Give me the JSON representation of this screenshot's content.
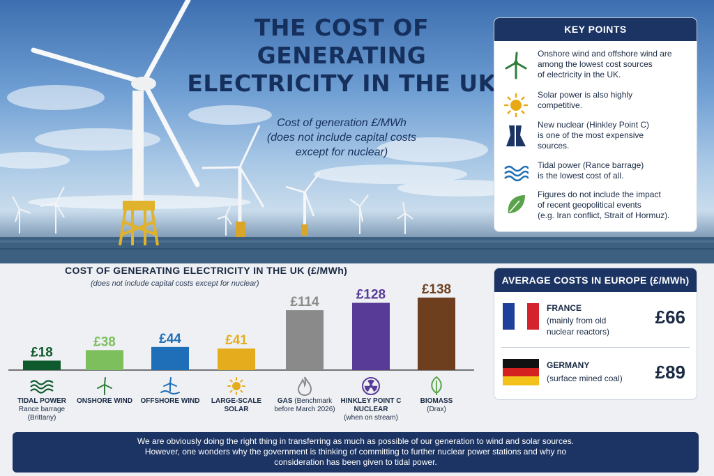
{
  "header": {
    "title_line1": "THE COST OF GENERATING",
    "title_line2": "ELECTRICITY IN THE UK",
    "subtitle_line1": "Cost of generation £/MWh",
    "subtitle_line2": "(does not include capital costs",
    "subtitle_line3": "except for nuclear)"
  },
  "key_points": {
    "heading": "KEY POINTS",
    "items": [
      {
        "icon": "wind-turbine-icon",
        "color": "#2e7d3a",
        "line1": "Onshore wind and offshore wind are",
        "line2": "among the lowest cost sources",
        "line3": "of electricity in the UK."
      },
      {
        "icon": "sun-icon",
        "color": "#e2a412",
        "line1": "Solar power is also highly",
        "line2": "competitive.",
        "line3": ""
      },
      {
        "icon": "cooling-tower-icon",
        "color": "#1c3463",
        "line1": "New nuclear (Hinkley Point C)",
        "line2": "is one of the most expensive",
        "line3": "sources."
      },
      {
        "icon": "waves-icon",
        "color": "#1f6fb5",
        "line1": "Tidal power  (Rance barrage)",
        "line2": "is the lowest cost of all.",
        "line3": ""
      },
      {
        "icon": "leaf-icon",
        "color": "#5aa34a",
        "line1": "Figures do not include the impact",
        "line2": "of recent geopolitical events",
        "line3": "(e.g. Iran conflict, Strait of Hormuz)."
      }
    ]
  },
  "chart_data": {
    "type": "bar",
    "title": "COST OF GENERATING ELECTRICITY IN THE UK (£/MWh)",
    "subtitle": "(does not include capital costs except for nuclear)",
    "categories": [
      "TIDAL POWER",
      "ONSHORE WIND",
      "OFFSHORE WIND",
      "LARGE-SCALE SOLAR",
      "GAS",
      "HINKLEY POINT C NUCLEAR",
      "BIOMASS"
    ],
    "values": [
      18,
      38,
      44,
      41,
      114,
      128,
      138
    ],
    "value_labels": [
      "£18",
      "£38",
      "£44",
      "£41",
      "£114",
      "£128",
      "£138"
    ],
    "colors": [
      "#0f5a2c",
      "#7cbf5c",
      "#1f6fb8",
      "#e5ad1d",
      "#8a8a8a",
      "#583b96",
      "#6e3f1f"
    ],
    "ylim": [
      0,
      150
    ],
    "xlabel": "",
    "ylabel": "",
    "grid": false,
    "label_lines": [
      {
        "l1": "TIDAL POWER",
        "l2": "Rance barrage",
        "l3": "(Brittany)"
      },
      {
        "l1": "ONSHORE WIND",
        "l2": "",
        "l3": ""
      },
      {
        "l1": "OFFSHORE WIND",
        "l2": "",
        "l3": ""
      },
      {
        "l1": "LARGE-SCALE",
        "l2": "SOLAR",
        "l3": ""
      },
      {
        "l1": "GAS",
        "l2": "(Benchmark",
        "l3": "before March 2026)"
      },
      {
        "l1": "HINKLEY POINT C",
        "l2": "NUCLEAR",
        "l3": "(when on stream)"
      },
      {
        "l1": "BIOMASS",
        "l2": "(Drax)",
        "l3": ""
      }
    ],
    "icons": [
      "waves-icon",
      "wind-turbine-icon",
      "offshore-turbine-icon",
      "sun-icon",
      "flame-icon",
      "radiation-icon",
      "leaf-icon"
    ]
  },
  "europe": {
    "heading": "AVERAGE COSTS IN EUROPE (£/MWh)",
    "rows": [
      {
        "country": "FRANCE",
        "note1": "(mainly from old",
        "note2": "nuclear reactors)",
        "value": "£66"
      },
      {
        "country": "GERMANY",
        "note1": "(surface mined coal)",
        "note2": "",
        "value": "£89"
      }
    ]
  },
  "footer": {
    "line1": "We are obviously doing the right thing in transferring as much as possible of our generation to wind and solar sources.",
    "line2": "However, one wonders why the government is thinking of committing to further nuclear power stations and why no",
    "line3": "consideration has been given to tidal power."
  }
}
